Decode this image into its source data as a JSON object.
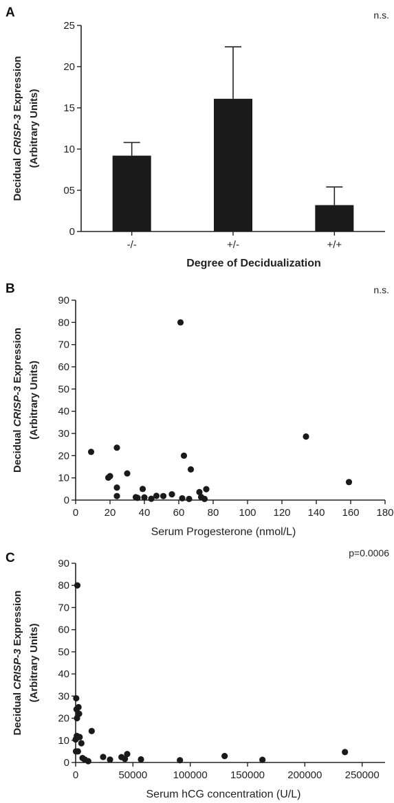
{
  "chart_data": [
    {
      "panel": "A",
      "type": "bar",
      "categories": [
        "-/-",
        "+/-",
        "+/+"
      ],
      "values": [
        9.2,
        16.1,
        3.2
      ],
      "error_upper": [
        10.8,
        22.4,
        5.4
      ],
      "ylim": [
        0,
        25
      ],
      "yticks": [
        "0",
        "05",
        "10",
        "15",
        "20",
        "25"
      ],
      "xlabel": "Degree of Decidualization",
      "ylabel_prefix": "Decidual ",
      "ylabel_gene": "CRISP-3",
      "ylabel_suffix": " Expression",
      "ylabel_line2": "(Arbitrary Units)",
      "stat": "n.s.",
      "bar_color": "#1a1a1a"
    },
    {
      "panel": "B",
      "type": "scatter",
      "x": [
        9,
        19,
        20,
        24,
        24,
        24,
        30,
        35,
        36,
        39,
        40,
        44,
        47,
        51,
        56,
        61,
        62,
        63,
        66,
        67,
        72,
        73,
        75,
        76,
        134,
        159
      ],
      "y": [
        21.7,
        10.1,
        10.8,
        23.6,
        5.6,
        1.8,
        12.0,
        1.3,
        1.0,
        5.0,
        1.2,
        0.6,
        1.9,
        1.8,
        2.6,
        80.0,
        0.8,
        20.0,
        0.5,
        13.8,
        3.6,
        1.4,
        0.5,
        4.9,
        28.6,
        8.1
      ],
      "xlim": [
        0,
        180
      ],
      "ylim": [
        0,
        90
      ],
      "xticks": [
        0,
        20,
        40,
        60,
        80,
        100,
        120,
        140,
        160,
        180
      ],
      "yticks": [
        0,
        10,
        20,
        30,
        40,
        50,
        60,
        70,
        80,
        90
      ],
      "xlabel": "Serum Progesterone (nmol/L)",
      "ylabel_prefix": "Decidual ",
      "ylabel_gene": "CRISP-3",
      "ylabel_suffix": " Expression",
      "ylabel_line2": "(Arbitrary Units)",
      "stat": "n.s.",
      "point_color": "#1a1a1a"
    },
    {
      "panel": "C",
      "type": "scatter",
      "x": [
        0,
        300,
        500,
        800,
        1000,
        1200,
        1500,
        2000,
        2500,
        3000,
        3500,
        5000,
        6000,
        8000,
        11000,
        14000,
        24000,
        30000,
        40000,
        43000,
        45000,
        57000,
        91000,
        130000,
        163000,
        235000
      ],
      "y": [
        10.4,
        5.0,
        29.0,
        24.0,
        12.0,
        20.0,
        80.0,
        5.0,
        25.0,
        22.0,
        11.5,
        8.7,
        2.0,
        1.3,
        0.6,
        14.2,
        2.5,
        1.3,
        2.4,
        1.6,
        3.8,
        1.4,
        1.0,
        2.9,
        1.2,
        4.7
      ],
      "xlim": [
        0,
        270000
      ],
      "ylim": [
        0,
        90
      ],
      "xticks": [
        0,
        50000,
        100000,
        150000,
        200000,
        250000
      ],
      "yticks": [
        0,
        10,
        20,
        30,
        40,
        50,
        60,
        70,
        80,
        90
      ],
      "xlabel": "Serum hCG concentration (U/L)",
      "ylabel_prefix": "Decidual ",
      "ylabel_gene": "CRISP-3",
      "ylabel_suffix": " Expression",
      "ylabel_line2": "(Arbitrary Units)",
      "stat": "p=0.0006",
      "point_color": "#1a1a1a"
    }
  ]
}
